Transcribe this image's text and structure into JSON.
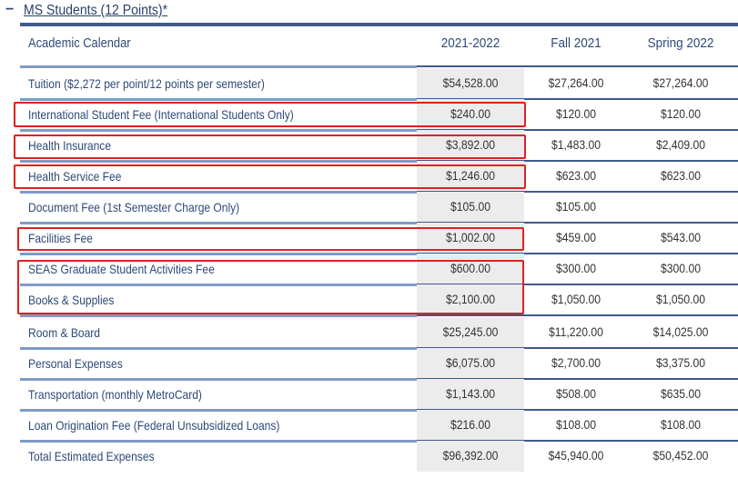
{
  "section": {
    "toggle": "−",
    "title": "MS Students (12 Points)*"
  },
  "columns": {
    "header_label": "Academic Calendar",
    "year": "2021-2022",
    "fall": "Fall 2021",
    "spring": "Spring 2022"
  },
  "rows": [
    {
      "label": "Tuition ($2,272 per point/12 points per semester)",
      "year": "$54,528.00",
      "fall": "$27,264.00",
      "spring": "$27,264.00"
    },
    {
      "label": "International Student Fee (International Students Only)",
      "year": "$240.00",
      "fall": "$120.00",
      "spring": "$120.00"
    },
    {
      "label": "Health Insurance",
      "year": "$3,892.00",
      "fall": "$1,483.00",
      "spring": "$2,409.00"
    },
    {
      "label": "Health Service Fee",
      "year": "$1,246.00",
      "fall": "$623.00",
      "spring": "$623.00"
    },
    {
      "label": "Document Fee (1st Semester Charge Only)",
      "year": "$105.00",
      "fall": "$105.00",
      "spring": ""
    },
    {
      "label": "Facilities Fee",
      "year": "$1,002.00",
      "fall": "$459.00",
      "spring": "$543.00"
    },
    {
      "label": "SEAS Graduate Student Activities Fee",
      "year": "$600.00",
      "fall": "$300.00",
      "spring": "$300.00"
    },
    {
      "label": "Books & Supplies",
      "year": "$2,100.00",
      "fall": "$1,050.00",
      "spring": "$1,050.00"
    },
    {
      "label": "Room & Board",
      "year": "$25,245.00",
      "fall": "$11,220.00",
      "spring": "$14,025.00"
    },
    {
      "label": "Personal Expenses",
      "year": "$6,075.00",
      "fall": "$2,700.00",
      "spring": "$3,375.00"
    },
    {
      "label": "Transportation (monthly MetroCard)",
      "year": "$1,143.00",
      "fall": "$508.00",
      "spring": "$635.00"
    },
    {
      "label": "Loan Origination Fee (Federal Unsubsidized Loans)",
      "year": "$216.00",
      "fall": "$108.00",
      "spring": "$108.00"
    },
    {
      "label": "Total Estimated Expenses",
      "year": "$96,392.00",
      "fall": "$45,940.00",
      "spring": "$50,452.00"
    }
  ],
  "colors": {
    "accent": "#3d5a8a",
    "label_text": "#2d4a78",
    "highlight": "#e02020",
    "shade": "#ececec"
  }
}
